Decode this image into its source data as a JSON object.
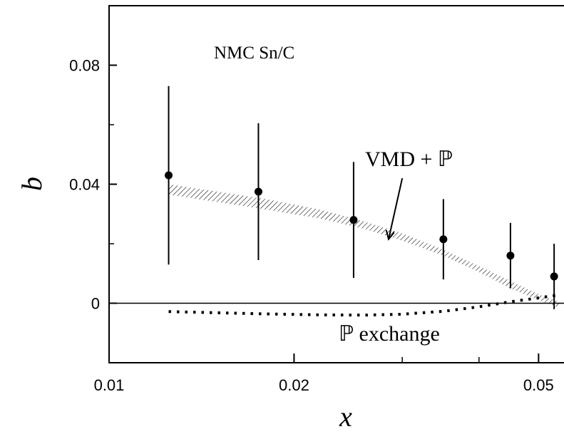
{
  "chart_data": {
    "type": "scatter",
    "title": "",
    "annotation": "NMC Sn/C",
    "xlabel": "x",
    "ylabel": "b",
    "xscale": "log",
    "xlim": [
      0.01,
      0.055
    ],
    "ylim": [
      -0.02,
      0.1
    ],
    "x_ticks": [
      {
        "value": 0.01,
        "label": "0.01"
      },
      {
        "value": 0.02,
        "label": "0.02"
      },
      {
        "value": 0.05,
        "label": "0.05"
      }
    ],
    "y_ticks": [
      {
        "value": 0.08,
        "label": "0.08"
      },
      {
        "value": 0.04,
        "label": "0.04"
      },
      {
        "value": 0,
        "label": "0"
      }
    ],
    "data_points": [
      {
        "x": 0.0125,
        "y": 0.043,
        "ylow": 0.013,
        "yhigh": 0.073
      },
      {
        "x": 0.0175,
        "y": 0.0375,
        "ylow": 0.0145,
        "yhigh": 0.0605
      },
      {
        "x": 0.025,
        "y": 0.028,
        "ylow": 0.0085,
        "yhigh": 0.0475
      },
      {
        "x": 0.035,
        "y": 0.0215,
        "ylow": 0.008,
        "yhigh": 0.035
      },
      {
        "x": 0.045,
        "y": 0.016,
        "ylow": 0.005,
        "yhigh": 0.027
      },
      {
        "x": 0.053,
        "y": 0.009,
        "ylow": -0.002,
        "yhigh": 0.02
      }
    ],
    "vmd_band": {
      "label": "VMD + ℙ",
      "x": [
        0.0125,
        0.015,
        0.018,
        0.022,
        0.026,
        0.03,
        0.035,
        0.04,
        0.045,
        0.05,
        0.054
      ],
      "upper": [
        0.04,
        0.0375,
        0.035,
        0.0315,
        0.0275,
        0.0235,
        0.018,
        0.0125,
        0.0075,
        0.003,
        0.0005
      ],
      "lower": [
        0.0365,
        0.034,
        0.0315,
        0.0285,
        0.025,
        0.021,
        0.016,
        0.0105,
        0.005,
        0.001,
        -0.0015
      ]
    },
    "pomeron_curve": {
      "label": "ℙ exchange",
      "x": [
        0.0125,
        0.015,
        0.018,
        0.022,
        0.026,
        0.03,
        0.035,
        0.04,
        0.045,
        0.05,
        0.054
      ],
      "y": [
        -0.0028,
        -0.0032,
        -0.0036,
        -0.0039,
        -0.004,
        -0.0037,
        -0.0027,
        -0.0012,
        0.0005,
        0.0018,
        0.0028
      ]
    },
    "arrow": {
      "from": [
        0.03,
        0.042
      ],
      "to": [
        0.0285,
        0.0215
      ]
    },
    "grid": false,
    "legend": "none"
  }
}
